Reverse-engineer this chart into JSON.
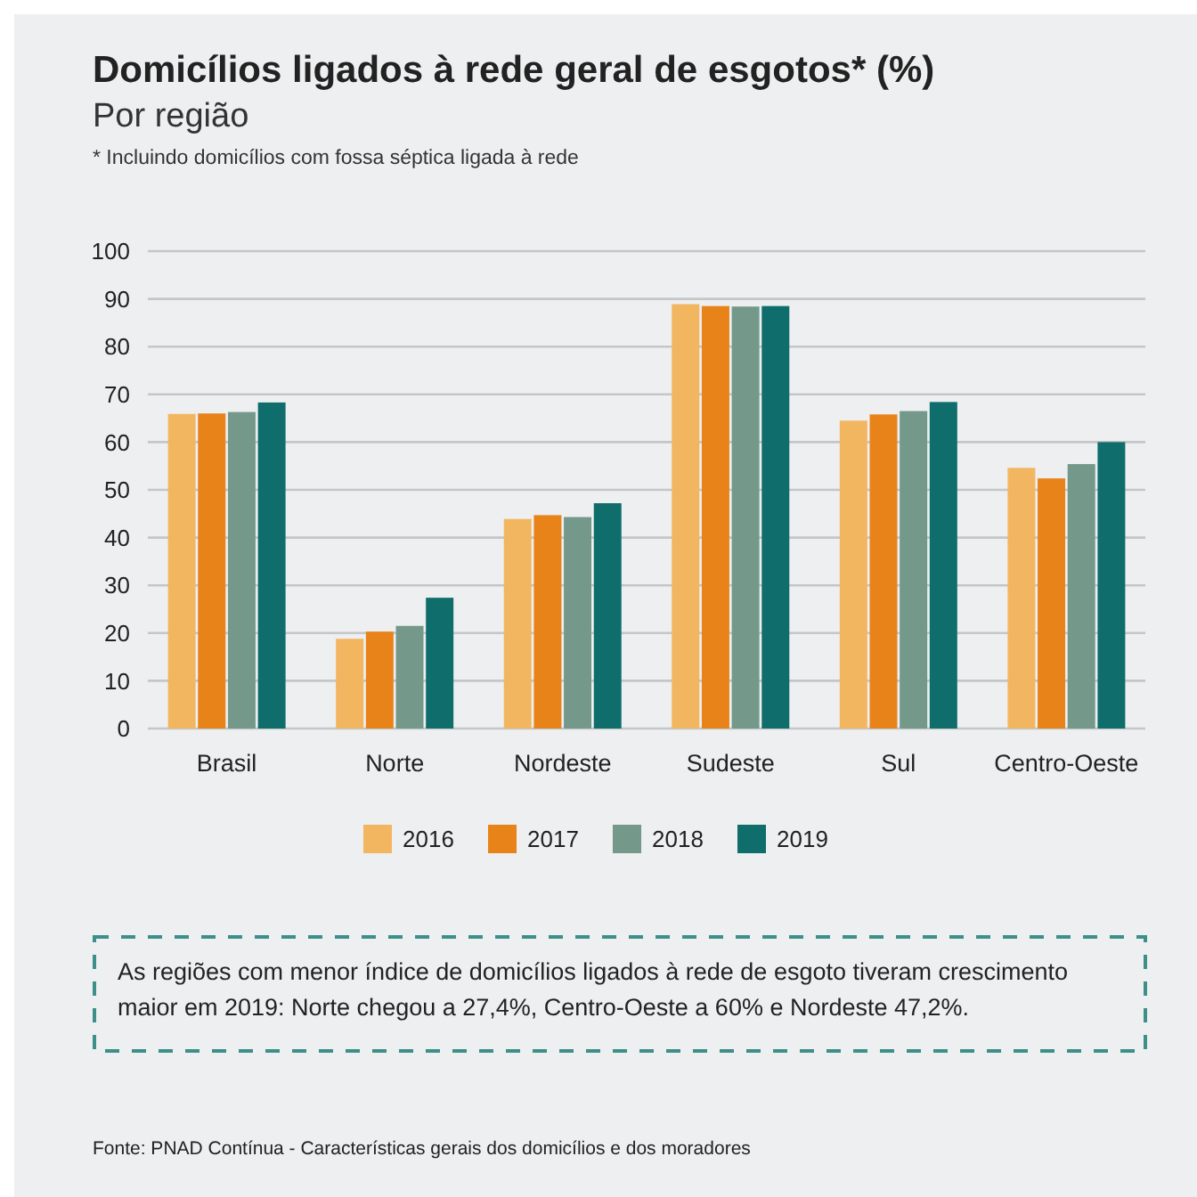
{
  "chart_data": {
    "type": "bar",
    "title": "Domicílios ligados à rede geral de esgotos* (%)",
    "subtitle": "Por região",
    "annotations": [
      "* Incluindo domicílios com fossa séptica ligada à rede",
      "As regiões com menor índice de domicílios ligados à rede de esgoto tiveram crescimento maior em 2019: Norte chegou a 27,4%, Centro-Oeste a 60% e Nordeste 47,2%.",
      "Fonte: PNAD Contínua - Características gerais dos domicílios e dos moradores"
    ],
    "categories": [
      "Brasil",
      "Norte",
      "Nordeste",
      "Sudeste",
      "Sul",
      "Centro-Oeste"
    ],
    "series": [
      {
        "name": "2016",
        "color": "#f2b661",
        "values": [
          65.9,
          18.8,
          43.9,
          88.9,
          64.5,
          54.6
        ]
      },
      {
        "name": "2017",
        "color": "#e8831a",
        "values": [
          66.0,
          20.3,
          44.7,
          88.5,
          65.8,
          52.4
        ]
      },
      {
        "name": "2018",
        "color": "#74998a",
        "values": [
          66.3,
          21.5,
          44.3,
          88.4,
          66.5,
          55.4
        ]
      },
      {
        "name": "2019",
        "color": "#0f6e6c",
        "values": [
          68.3,
          27.4,
          47.2,
          88.5,
          68.4,
          60.0
        ]
      }
    ],
    "ylim": [
      0,
      100
    ],
    "yticks": [
      0,
      10,
      20,
      30,
      40,
      50,
      60,
      70,
      80,
      90,
      100
    ],
    "grid": "y",
    "legend": "bottom"
  }
}
